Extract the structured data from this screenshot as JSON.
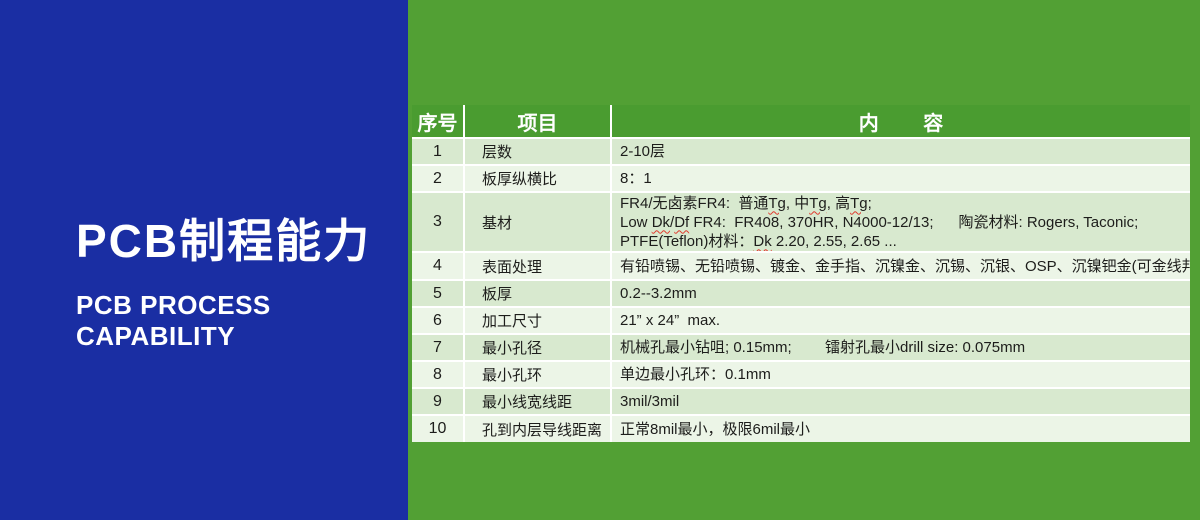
{
  "colors": {
    "left_bg": "#1a2ea3",
    "right_bg": "#52a034",
    "header_bg": "#4a9c30",
    "header_text": "#ffffff",
    "row_odd": "#d8e9cf",
    "row_even": "#ecf5e7",
    "table_gap": "#ffffff",
    "body_text": "#1d1d1b",
    "wavy": "#e0392d"
  },
  "left_panel": {
    "title_cn": "PCB制程能力",
    "title_en_line1": "PCB PROCESS",
    "title_en_line2": "CAPABILITY"
  },
  "table": {
    "header": {
      "no": "序号",
      "item": "项目",
      "content": "内        容"
    },
    "rows": [
      {
        "no": "1",
        "item": "层数",
        "content": [
          [
            {
              "t": "2-10层"
            }
          ]
        ]
      },
      {
        "no": "2",
        "item": "板厚纵横比",
        "content": [
          [
            {
              "t": "8：1"
            }
          ]
        ]
      },
      {
        "no": "3",
        "item": "基材",
        "content": [
          [
            {
              "t": "FR4/无卤素FR4:  普通"
            },
            {
              "t": "Tg",
              "wavy": true
            },
            {
              "t": ", 中"
            },
            {
              "t": "Tg",
              "wavy": true
            },
            {
              "t": ", 高"
            },
            {
              "t": "Tg",
              "wavy": true
            },
            {
              "t": ";"
            }
          ],
          [
            {
              "t": "Low "
            },
            {
              "t": "Dk",
              "wavy": true
            },
            {
              "t": "/"
            },
            {
              "t": "Df",
              "wavy": true
            },
            {
              "t": " FR4:  FR408, 370HR, N4000-12/13;      陶瓷材料: Rogers, Taconic;"
            }
          ],
          [
            {
              "t": "PTFE(Teflon)材料："
            },
            {
              "t": "Dk",
              "wavy": true
            },
            {
              "t": " 2.20, 2.55, 2.65 ..."
            }
          ]
        ]
      },
      {
        "no": "4",
        "item": "表面处理",
        "content": [
          [
            {
              "t": "有铅喷锡、无铅喷锡、镀金、金手指、沉镍金、沉锡、沉银、OSP、沉镍钯金(可金线邦定)"
            }
          ]
        ]
      },
      {
        "no": "5",
        "item": "板厚",
        "content": [
          [
            {
              "t": "0.2--3.2mm"
            }
          ]
        ]
      },
      {
        "no": "6",
        "item": "加工尺寸",
        "content": [
          [
            {
              "t": "21” x 24”  max."
            }
          ]
        ]
      },
      {
        "no": "7",
        "item": "最小孔径",
        "content": [
          [
            {
              "t": "机械孔最小钻咀; 0.15mm;        镭射孔最小drill size: 0.075mm"
            }
          ]
        ]
      },
      {
        "no": "8",
        "item": "最小孔环",
        "content": [
          [
            {
              "t": "单边最小孔环：0.1mm"
            }
          ]
        ]
      },
      {
        "no": "9",
        "item": "最小线宽线距",
        "content": [
          [
            {
              "t": "3mil/3mil"
            }
          ]
        ]
      },
      {
        "no": "10",
        "item": "孔到内层导线距离",
        "content": [
          [
            {
              "t": "正常8mil最小，极限6mil最小"
            }
          ]
        ]
      }
    ]
  }
}
